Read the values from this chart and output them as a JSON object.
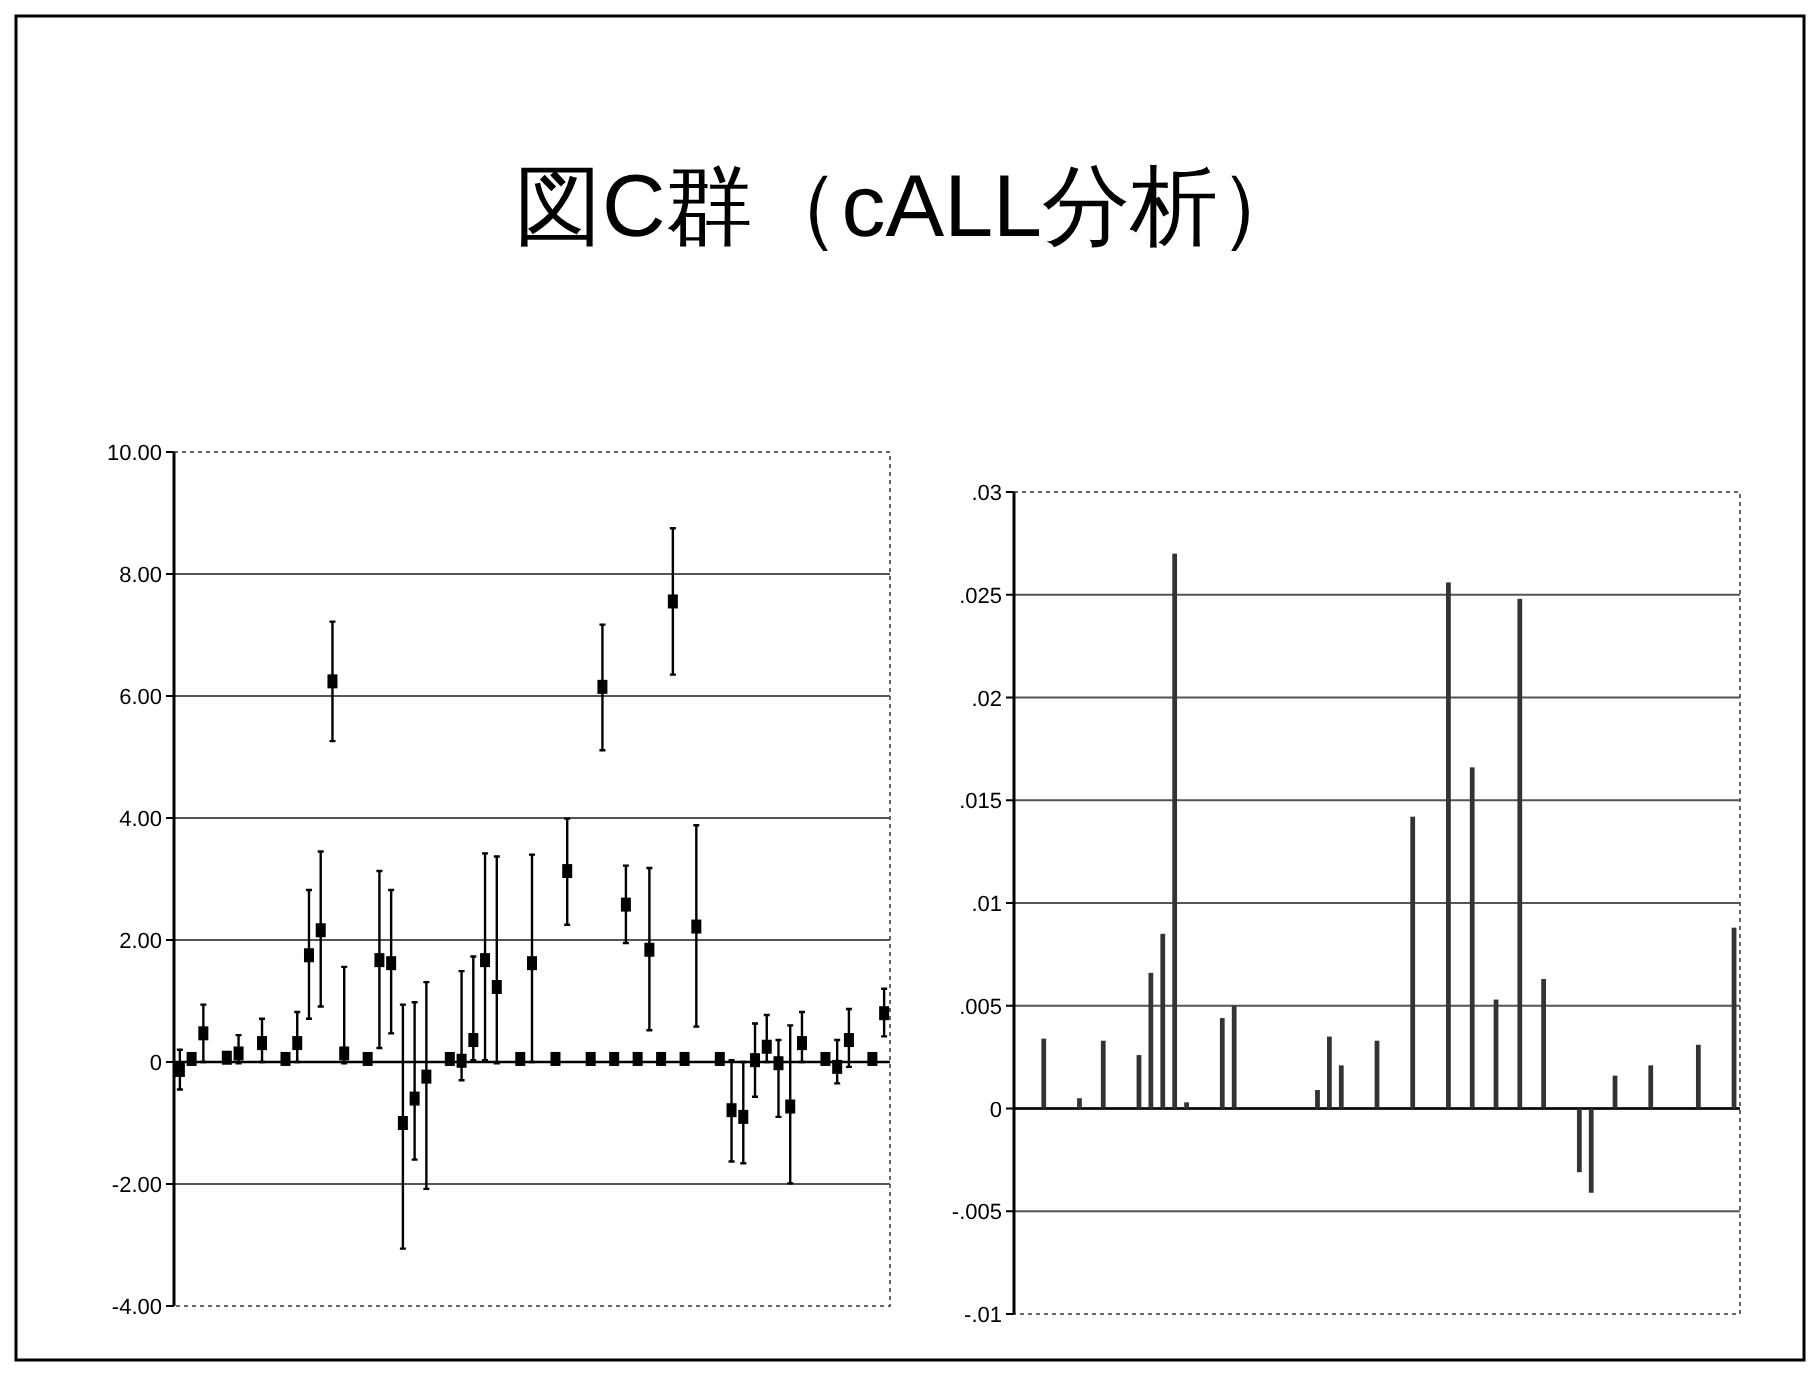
{
  "chart_data": [
    {
      "type": "scatter",
      "title": "図C群（cALL分析）",
      "marker": "square",
      "grid": true,
      "color": "#000000",
      "categories": [
        null,
        null,
        null,
        null,
        null,
        null,
        null,
        null,
        null,
        null,
        null,
        null,
        null,
        null,
        null,
        null,
        null,
        null,
        null,
        null,
        null,
        null,
        null,
        null,
        null,
        null,
        null,
        null,
        null,
        null,
        null,
        null,
        null,
        null,
        null,
        null,
        null,
        null,
        null,
        null,
        null,
        null,
        null,
        null,
        null,
        null,
        null,
        null,
        null,
        null,
        null,
        null,
        null,
        null,
        null,
        null,
        null,
        null,
        null,
        null,
        null
      ],
      "values": [
        -0.13,
        0.05,
        0.47,
        null,
        0.07,
        0.14,
        null,
        0.31,
        null,
        0.05,
        0.31,
        1.75,
        2.16,
        6.24,
        0.14,
        null,
        0.05,
        1.67,
        1.62,
        -1.0,
        -0.6,
        -0.24,
        null,
        0.05,
        0.02,
        0.36,
        1.67,
        1.23,
        null,
        0.05,
        1.62,
        null,
        0.05,
        3.13,
        null,
        0.05,
        6.15,
        0.05,
        2.58,
        0.05,
        1.84,
        0.05,
        7.55,
        0.05,
        2.22,
        null,
        0.05,
        -0.79,
        -0.9,
        0.03,
        0.25,
        -0.02,
        -0.73,
        0.31,
        null,
        0.05,
        -0.08,
        0.36,
        null,
        0.05,
        0.8
      ],
      "errors": [
        [
          -0.45,
          0.2
        ],
        null,
        [
          0,
          0.94
        ],
        null,
        null,
        [
          -0.02,
          0.44
        ],
        null,
        [
          0,
          0.71
        ],
        null,
        null,
        [
          0,
          0.82
        ],
        [
          0.71,
          2.82
        ],
        [
          0.91,
          3.45
        ],
        [
          5.26,
          7.22
        ],
        [
          -0.02,
          1.56
        ],
        null,
        null,
        [
          0.23,
          3.13
        ],
        [
          0.47,
          2.82
        ],
        [
          -3.06,
          0.94
        ],
        [
          -1.6,
          0.98
        ],
        [
          -2.08,
          1.31
        ],
        null,
        null,
        [
          -0.3,
          1.49
        ],
        [
          0.03,
          1.73
        ],
        [
          0.03,
          3.42
        ],
        [
          -0.02,
          3.37
        ],
        null,
        null,
        [
          0,
          3.4
        ],
        null,
        null,
        [
          2.25,
          3.99
        ],
        null,
        null,
        [
          5.11,
          7.17
        ],
        null,
        [
          1.95,
          3.22
        ],
        null,
        [
          0.52,
          3.18
        ],
        null,
        [
          6.35,
          8.75
        ],
        null,
        [
          0.58,
          3.88
        ],
        null,
        null,
        [
          -1.63,
          0.03
        ],
        [
          -1.66,
          0
        ],
        [
          -0.57,
          0.63
        ],
        [
          0,
          0.77
        ],
        [
          -0.9,
          0.36
        ],
        [
          -1.99,
          0.6
        ],
        [
          0,
          0.82
        ],
        null,
        null,
        [
          -0.35,
          0.36
        ],
        [
          -0.08,
          0.87
        ],
        null,
        null,
        [
          0.42,
          1.2
        ]
      ],
      "ylim": [
        -4,
        10
      ],
      "yticks": [
        {
          "value": 10,
          "label": "10.00"
        },
        {
          "value": 8,
          "label": "8.00"
        },
        {
          "value": 6,
          "label": "6.00"
        },
        {
          "value": 4,
          "label": "4.00"
        },
        {
          "value": 2,
          "label": "2.00"
        },
        0,
        {
          "value": -2,
          "label": "-2.00"
        },
        {
          "value": -4,
          "label": "-4.00"
        }
      ]
    },
    {
      "type": "bar",
      "grid": true,
      "color": "#333333",
      "categories": [
        null,
        null,
        null,
        null,
        null,
        null,
        null,
        null,
        null,
        null,
        null,
        null,
        null,
        null,
        null,
        null,
        null,
        null,
        null,
        null,
        null,
        null,
        null,
        null,
        null,
        null,
        null,
        null,
        null,
        null,
        null,
        null,
        null,
        null,
        null,
        null,
        null,
        null,
        null,
        null,
        null,
        null,
        null,
        null,
        null,
        null,
        null,
        null,
        null,
        null,
        null,
        null,
        null,
        null,
        null,
        null,
        null,
        null,
        null,
        null,
        null
      ],
      "values": [
        0,
        0,
        0.0034,
        null,
        0,
        0.0005,
        null,
        0.0033,
        null,
        0,
        0.0026,
        0.0066,
        0.0085,
        0.027,
        0.0003,
        null,
        0,
        0.0044,
        0.005,
        0,
        0,
        0,
        null,
        0,
        0,
        0.0009,
        0.0035,
        0.0021,
        null,
        0,
        0.0033,
        null,
        0,
        0.0142,
        null,
        0,
        0.0256,
        0,
        0.0166,
        0,
        0.0053,
        0,
        0.0248,
        0,
        0.0063,
        null,
        0,
        -0.0031,
        -0.0041,
        0,
        0.0016,
        0,
        0,
        0.0021,
        null,
        0,
        0,
        0.0031,
        null,
        0,
        0.0088
      ],
      "ylim": [
        -0.01,
        0.03
      ],
      "yticks": [
        {
          "value": 0.03,
          "label": ".03"
        },
        {
          "value": 0.025,
          "label": ".025"
        },
        {
          "value": 0.02,
          "label": ".02"
        },
        {
          "value": 0.015,
          "label": ".015"
        },
        {
          "value": 0.01,
          "label": ".01"
        },
        {
          "value": 0.005,
          "label": ".005"
        },
        0,
        {
          "value": -0.005,
          "label": "-.005"
        },
        {
          "value": -0.01,
          "label": "-.01"
        }
      ]
    }
  ]
}
